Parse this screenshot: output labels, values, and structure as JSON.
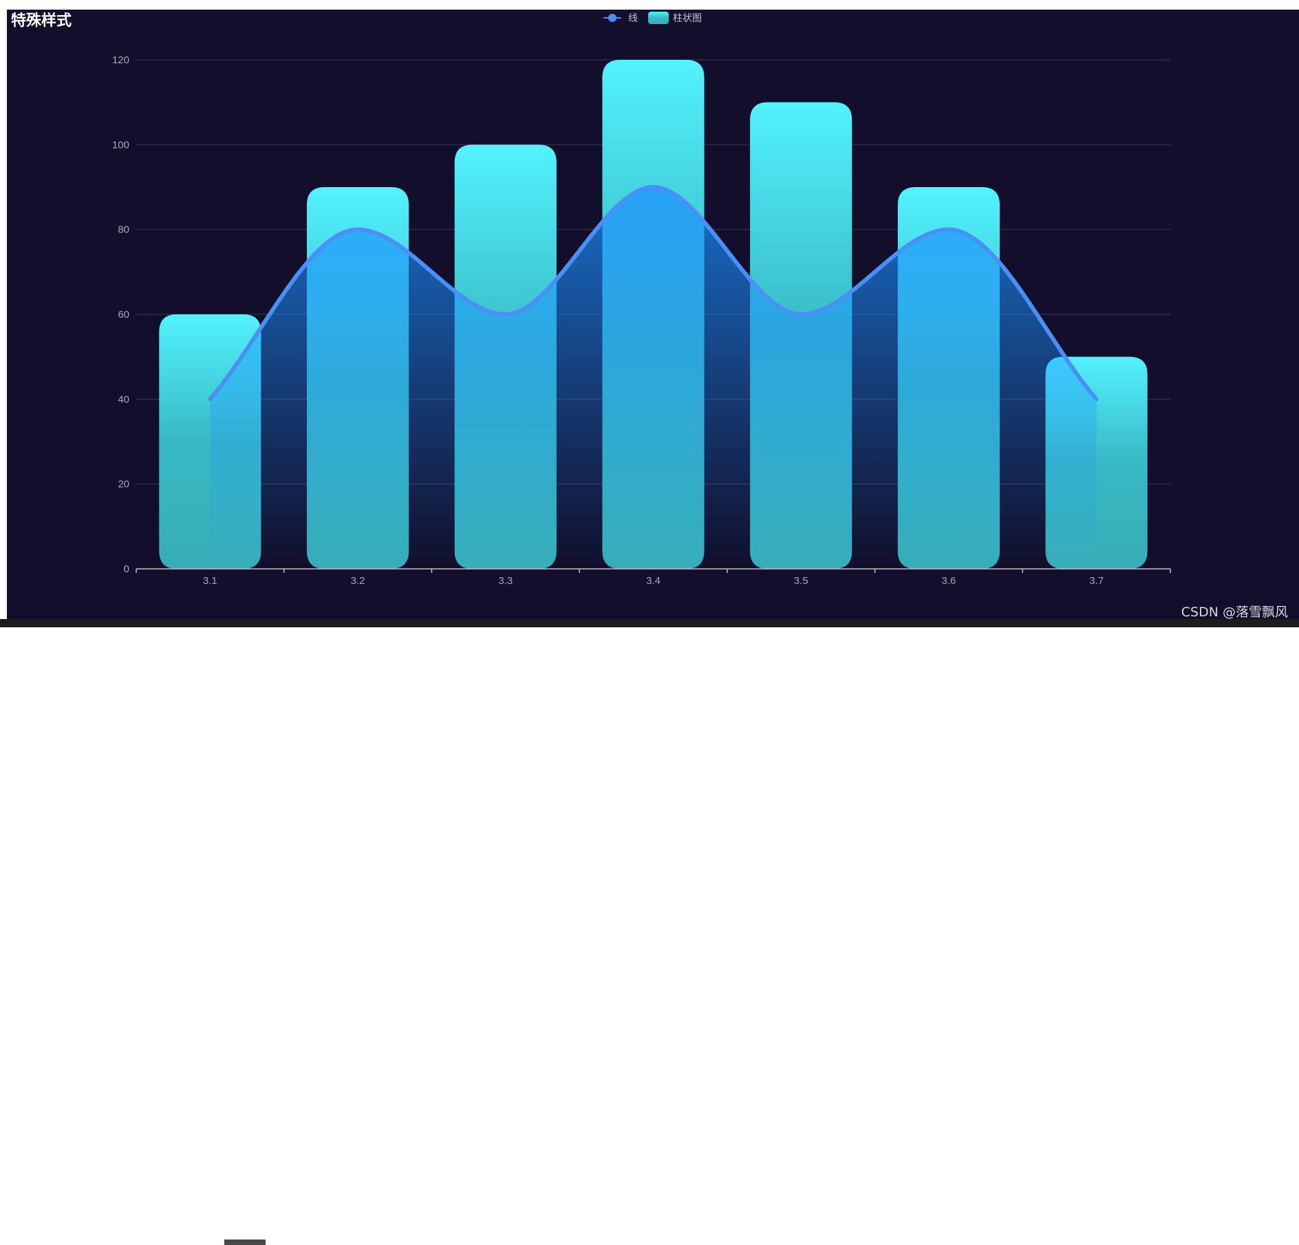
{
  "title": "特殊样式",
  "watermark": "CSDN @落雪飘风",
  "colors": {
    "background": "#120e2b",
    "line": "#4a8ff5",
    "bar_top": "#52f2fe",
    "bar_bottom": "#37aeb8",
    "area_top": "#1b8fff",
    "axis_label": "#a5a7b8",
    "grid": "#3a3a55"
  },
  "chart_data": {
    "type": "bar",
    "title": "特殊样式",
    "categories": [
      "3.1",
      "3.2",
      "3.3",
      "3.4",
      "3.5",
      "3.6",
      "3.7"
    ],
    "ylim": [
      0,
      120
    ],
    "yticks": [
      0,
      20,
      40,
      60,
      80,
      100,
      120
    ],
    "grid": true,
    "legend_position": "top-center",
    "series": [
      {
        "name": "线",
        "type": "line",
        "smooth": true,
        "area": true,
        "values": [
          40,
          80,
          60,
          90,
          60,
          80,
          40
        ]
      },
      {
        "name": "柱状图",
        "type": "bar",
        "values": [
          60,
          90,
          100,
          120,
          110,
          90,
          50
        ]
      }
    ]
  }
}
